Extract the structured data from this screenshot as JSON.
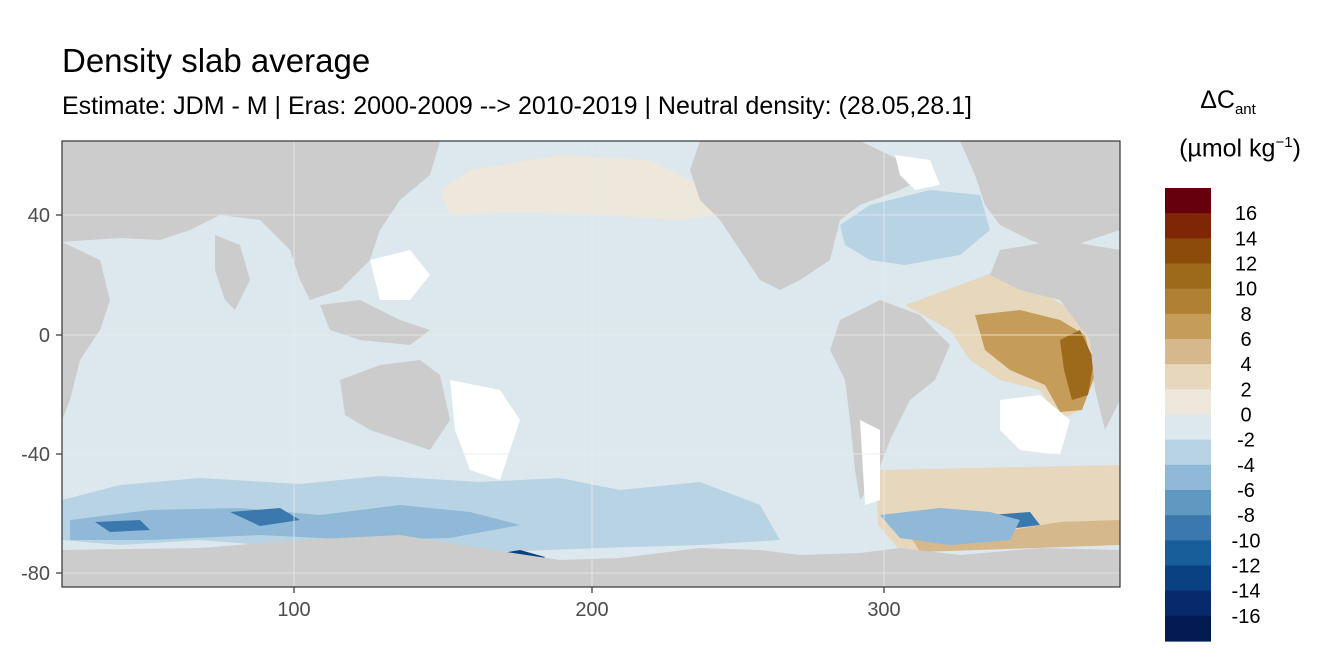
{
  "title": "Density slab average",
  "subtitle": "Estimate: JDM - M | Eras: 2000-2009 --> 2010-2019 | Neutral density: (28.05,28.1]",
  "legend": {
    "title_symbol": "ΔC",
    "title_subscript": "ant",
    "unit_prefix": "(µmol kg",
    "unit_superscript": "−1",
    "unit_suffix": ")",
    "tick_labels": [
      "16",
      "14",
      "12",
      "10",
      "8",
      "6",
      "4",
      "2",
      "0",
      "-2",
      "-4",
      "-6",
      "-8",
      "-10",
      "-12",
      "-14",
      "-16"
    ],
    "colors": [
      "#67000d",
      "#7f2704",
      "#8c4a0b",
      "#9c6a1a",
      "#b08134",
      "#c59c5a",
      "#d5b88b",
      "#e6d7bd",
      "#ede7dc",
      "#dce8ee",
      "#b8d3e3",
      "#8fb9d6",
      "#5f99c2",
      "#3a78ae",
      "#185e9a",
      "#0a4182",
      "#062a6b",
      "#041a52"
    ]
  },
  "map_data": {
    "type": "heatmap",
    "x_axis": {
      "ticks": [
        100,
        200,
        300
      ],
      "range": [
        20,
        383
      ]
    },
    "y_axis": {
      "ticks": [
        40,
        0,
        -40,
        -80
      ],
      "range": [
        -85,
        65
      ]
    },
    "land_color": "#cccccc",
    "nodata_color": "#ffffff",
    "ocean_base_color": "#dce8ee"
  }
}
